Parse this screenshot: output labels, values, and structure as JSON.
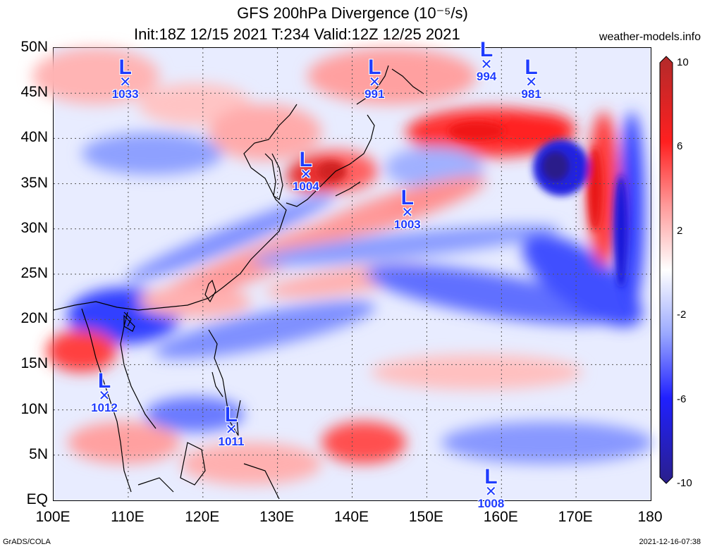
{
  "title": {
    "line1": "GFS 200hPa Divergence (10⁻⁵/s)",
    "line2": "Init:18Z 12/15 2021 T:234 Valid:12Z 12/25 2021"
  },
  "site": "weather-models.info",
  "footer": {
    "left": "GrADS/COLA",
    "right": "2021-12-16-07:38"
  },
  "map": {
    "lon_range": [
      100,
      180
    ],
    "lat_range": [
      0,
      50
    ],
    "lat_labels": [
      "50N",
      "45N",
      "40N",
      "35N",
      "30N",
      "25N",
      "20N",
      "15N",
      "10N",
      "5N",
      "EQ"
    ],
    "lon_labels": [
      "100E",
      "110E",
      "120E",
      "130E",
      "140E",
      "150E",
      "160E",
      "170E",
      "180"
    ],
    "grid": "dotted",
    "lows": [
      {
        "label": "L",
        "pressure": "1033",
        "lon": 109.6,
        "lat": 46
      },
      {
        "label": "L",
        "pressure": "991",
        "lon": 143,
        "lat": 46
      },
      {
        "label": "L",
        "pressure": "994",
        "lon": 158,
        "lat": 48
      },
      {
        "label": "L",
        "pressure": "981",
        "lon": 164,
        "lat": 46
      },
      {
        "label": "L",
        "pressure": "1004",
        "lon": 133.8,
        "lat": 35.8
      },
      {
        "label": "L",
        "pressure": "1003",
        "lon": 147.4,
        "lat": 31.6
      },
      {
        "label": "L",
        "pressure": "1012",
        "lon": 106.8,
        "lat": 11.4
      },
      {
        "label": "L",
        "pressure": "1011",
        "lon": 123.8,
        "lat": 7.6
      },
      {
        "label": "L",
        "pressure": "1008",
        "lon": 158.6,
        "lat": 0.8
      }
    ]
  },
  "colorbar": {
    "labels": [
      "10",
      "6",
      "2",
      "-2",
      "-6",
      "-10"
    ],
    "colors": [
      "#b22a2a",
      "#ff2020",
      "#ff9a9a",
      "#ffffff",
      "#9aa8ff",
      "#2020ff",
      "#2a1f8a"
    ]
  }
}
